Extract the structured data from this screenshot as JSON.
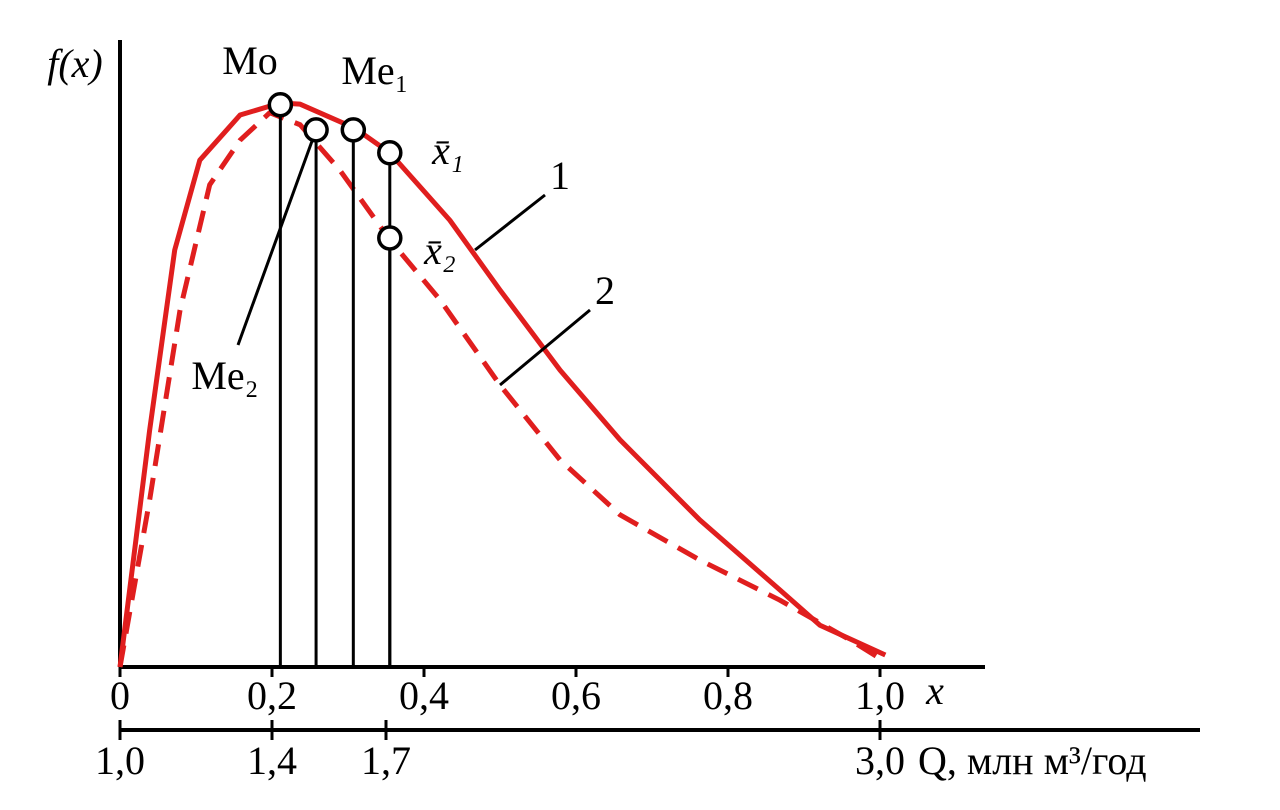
{
  "chart_data": {
    "type": "line",
    "ylabel": "f(x)",
    "xlabel": "x",
    "x2label": "Q, млн м³/год",
    "xlim": [
      0,
      1.0
    ],
    "ylim": [
      0,
      1.0
    ],
    "xticks": [
      0,
      {
        "value": 0.2,
        "label": "0,2"
      },
      {
        "value": 0.4,
        "label": "0,4"
      },
      {
        "value": 0.6,
        "label": "0,6"
      },
      {
        "value": 0.8,
        "label": "0,8"
      },
      {
        "value": 1.0,
        "label": "1,0"
      }
    ],
    "x2lim": [
      1.0,
      3.0
    ],
    "x2ticks": [
      {
        "value": 1.0,
        "label": "1,0"
      },
      {
        "value": 1.4,
        "label": "1,4"
      },
      {
        "value": 1.7,
        "label": "1,7"
      },
      {
        "value": 3.0,
        "label": "3,0"
      }
    ],
    "series": [
      {
        "name": "1",
        "color": "#e01e1e",
        "dash": false,
        "x": [
          0,
          0.039,
          0.072,
          0.105,
          0.158,
          0.211,
          0.237,
          0.309,
          0.355,
          0.434,
          0.5,
          0.579,
          0.658,
          0.763,
          0.868,
          0.921,
          1.007
        ],
        "values": [
          0,
          0.414,
          0.729,
          0.886,
          0.965,
          0.986,
          0.984,
          0.942,
          0.899,
          0.781,
          0.659,
          0.519,
          0.397,
          0.257,
          0.135,
          0.073,
          0.021
        ]
      },
      {
        "name": "2",
        "color": "#e01e1e",
        "dash": true,
        "x": [
          0,
          0.039,
          0.079,
          0.118,
          0.158,
          0.197,
          0.237,
          0.289,
          0.355,
          0.421,
          0.5,
          0.579,
          0.658,
          0.763,
          0.868,
          0.961,
          1.007
        ],
        "values": [
          0,
          0.292,
          0.624,
          0.843,
          0.921,
          0.969,
          0.948,
          0.869,
          0.747,
          0.642,
          0.493,
          0.362,
          0.266,
          0.187,
          0.117,
          0.047,
          0.009
        ]
      }
    ],
    "markers": [
      {
        "label": "Mo",
        "x": 0.211,
        "y": 0.983
      },
      {
        "label": "Me₂",
        "x": 0.258,
        "y": 0.939
      },
      {
        "label": "Me₁",
        "x": 0.307,
        "y": 0.939
      },
      {
        "label": "x̄₁",
        "x": 0.355,
        "y": 0.899
      },
      {
        "label": "x̄₂",
        "x": 0.355,
        "y": 0.75
      }
    ]
  }
}
